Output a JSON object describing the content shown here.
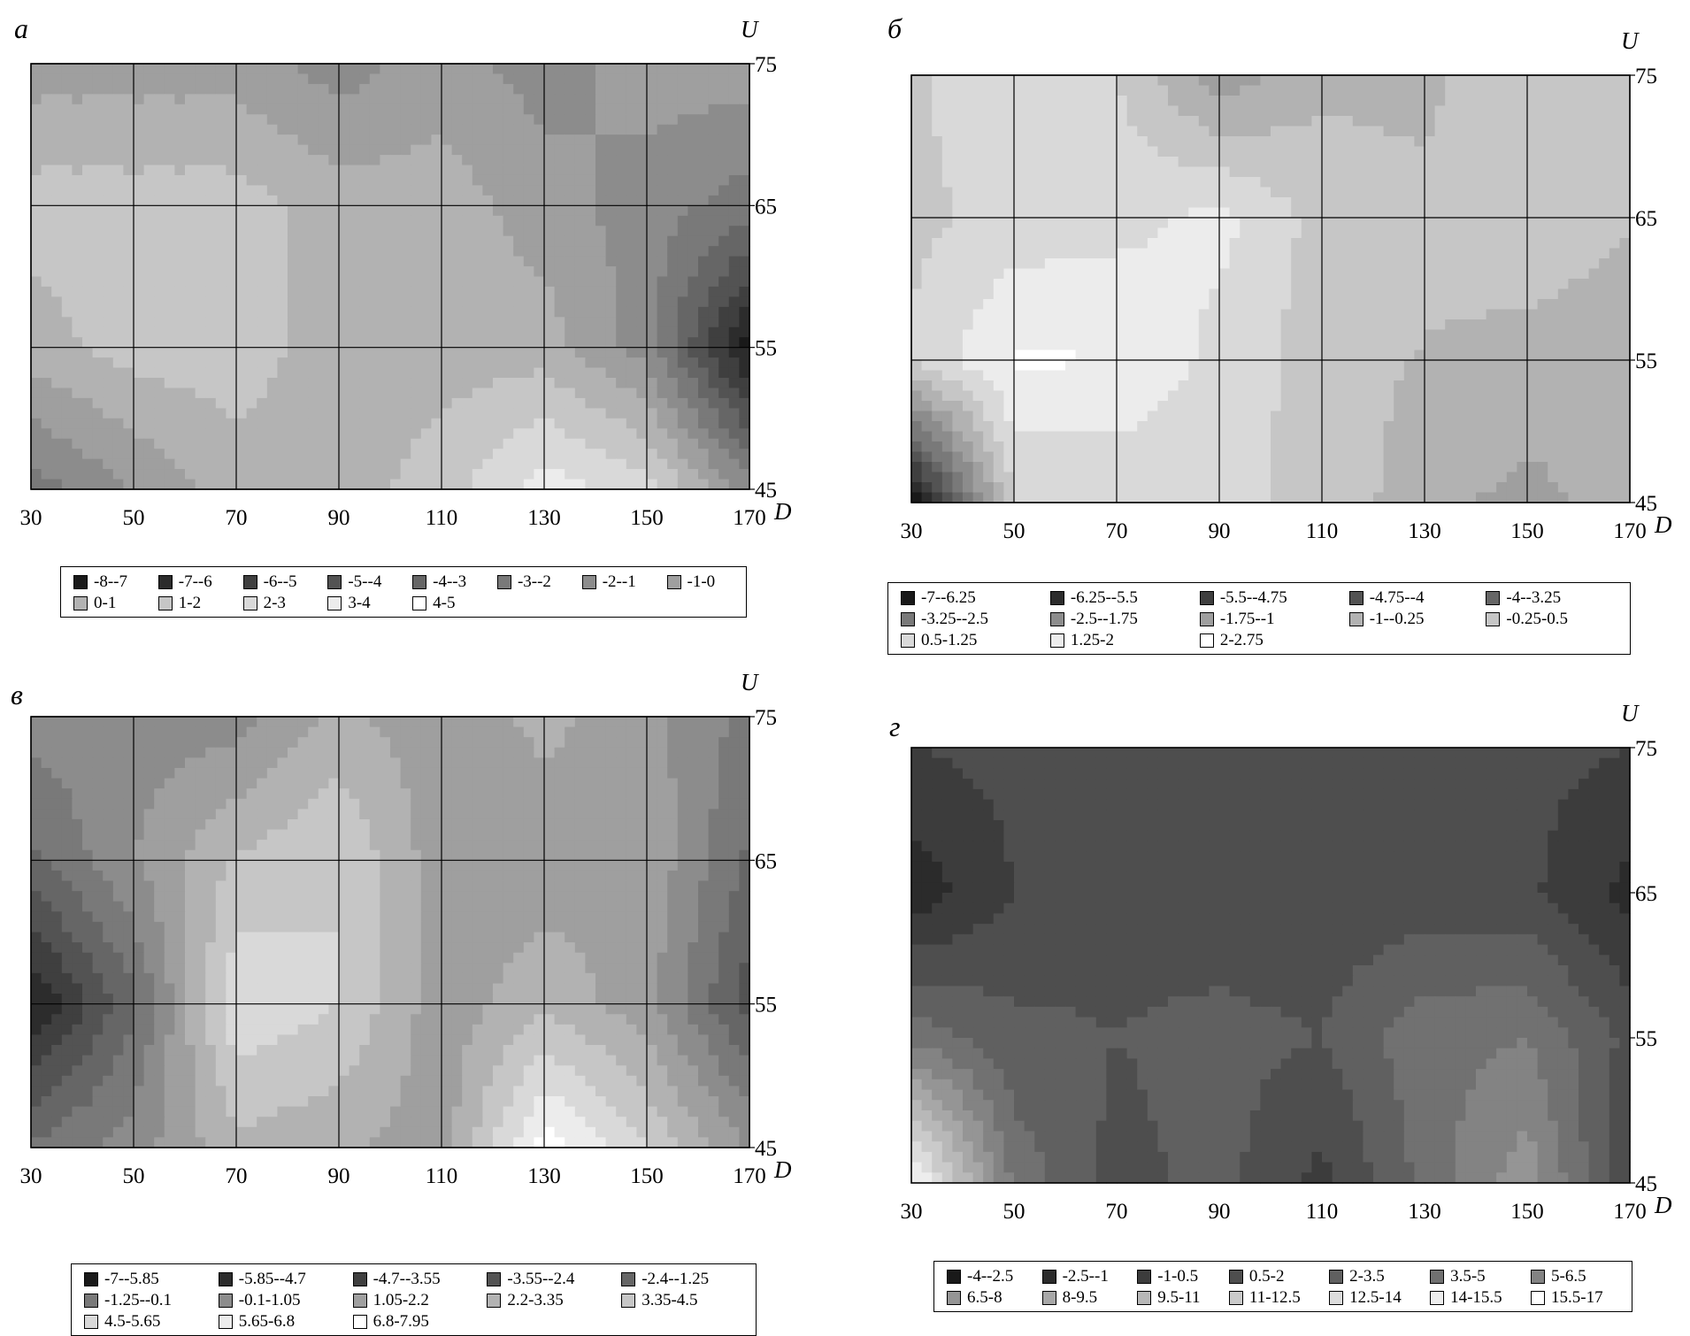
{
  "chart_data": [
    {
      "type": "heatmap",
      "subtype": "filled-contour",
      "panel_label": "а",
      "xlabel": "D",
      "ylabel": "U",
      "x_ticks": [
        "30",
        "50",
        "70",
        "90",
        "110",
        "130",
        "150",
        "170"
      ],
      "y_ticks": [
        "75",
        "65",
        "55",
        "45"
      ],
      "xlim": [
        30,
        170
      ],
      "ylim": [
        45,
        75
      ],
      "grid": true,
      "legend_position": "bottom",
      "legend_columns": 8,
      "x": [
        30,
        50,
        70,
        90,
        110,
        130,
        150,
        170
      ],
      "y": [
        45,
        55,
        65,
        75
      ],
      "z": [
        [
          -2.5,
          -1.0,
          0.5,
          0.5,
          1.5,
          3.5,
          2.5,
          -1.5
        ],
        [
          0.5,
          1.5,
          1.5,
          0.5,
          0.5,
          0.5,
          -1.5,
          -7.5
        ],
        [
          1.5,
          1.5,
          1.5,
          0.5,
          0.5,
          -0.5,
          -1.5,
          -2.5
        ],
        [
          -0.5,
          -0.5,
          -0.5,
          -1.5,
          -0.5,
          -1.5,
          -0.5,
          -0.5
        ]
      ],
      "legend": [
        "-8--7",
        "-7--6",
        "-6--5",
        "-5--4",
        "-4--3",
        "-3--2",
        "-2--1",
        "-1-0",
        "0-1",
        "1-2",
        "2-3",
        "3-4",
        "4-5"
      ]
    },
    {
      "type": "heatmap",
      "subtype": "filled-contour",
      "panel_label": "б",
      "xlabel": "D",
      "ylabel": "U",
      "x_ticks": [
        "30",
        "50",
        "70",
        "90",
        "110",
        "130",
        "150",
        "170"
      ],
      "y_ticks": [
        "75",
        "65",
        "55",
        "45"
      ],
      "xlim": [
        30,
        170
      ],
      "ylim": [
        45,
        75
      ],
      "grid": true,
      "legend_position": "bottom",
      "legend_columns": 5,
      "x": [
        30,
        50,
        70,
        90,
        110,
        130,
        150,
        170
      ],
      "y": [
        45,
        55,
        65,
        75
      ],
      "z": [
        [
          -7.0,
          0.5,
          0.6,
          0.6,
          0.4,
          -0.8,
          -1.2,
          -0.7
        ],
        [
          0.6,
          2.1,
          2.0,
          1.0,
          0.1,
          -0.3,
          -0.6,
          -0.8
        ],
        [
          0.3,
          0.8,
          1.0,
          1.5,
          0.2,
          0.0,
          0.4,
          -0.2
        ],
        [
          0.4,
          1.0,
          0.5,
          -1.5,
          -0.4,
          -0.5,
          0.5,
          -0.1
        ]
      ],
      "legend": [
        "-7--6.25",
        "-6.25--5.5",
        "-5.5--4.75",
        "-4.75--4",
        "-4--3.25",
        "-3.25--2.5",
        "-2.5--1.75",
        "-1.75--1",
        "-1--0.25",
        "-0.25-0.5",
        "0.5-1.25",
        "1.25-2",
        "2-2.75"
      ]
    },
    {
      "type": "heatmap",
      "subtype": "filled-contour",
      "panel_label": "в",
      "xlabel": "D",
      "ylabel": "U",
      "x_ticks": [
        "30",
        "50",
        "70",
        "90",
        "110",
        "130",
        "150",
        "170"
      ],
      "y_ticks": [
        "75",
        "65",
        "55",
        "45"
      ],
      "xlim": [
        30,
        170
      ],
      "ylim": [
        45,
        75
      ],
      "grid": true,
      "legend_position": "bottom",
      "legend_columns": 5,
      "x": [
        30,
        50,
        70,
        90,
        110,
        130,
        150,
        170
      ],
      "y": [
        45,
        55,
        65,
        75
      ],
      "z": [
        [
          -1.0,
          0.5,
          3.0,
          2.5,
          1.5,
          7.5,
          4.5,
          1.0
        ],
        [
          -6.0,
          -1.5,
          5.5,
          4.5,
          1.5,
          3.0,
          1.5,
          -3.0
        ],
        [
          -1.5,
          1.0,
          3.5,
          4.5,
          1.5,
          1.5,
          2.0,
          -1.5
        ],
        [
          0.5,
          0.5,
          0.5,
          2.5,
          1.5,
          2.5,
          1.5,
          -0.5
        ]
      ],
      "legend": [
        "-7--5.85",
        "-5.85--4.7",
        "-4.7--3.55",
        "-3.55--2.4",
        "-2.4--1.25",
        "-1.25--0.1",
        "-0.1-1.05",
        "1.05-2.2",
        "2.2-3.35",
        "3.35-4.5",
        "4.5-5.65",
        "5.65-6.8",
        "6.8-7.95"
      ]
    },
    {
      "type": "heatmap",
      "subtype": "filled-contour",
      "panel_label": "г",
      "xlabel": "D",
      "ylabel": "U",
      "x_ticks": [
        "30",
        "50",
        "70",
        "90",
        "110",
        "130",
        "150",
        "170"
      ],
      "y_ticks": [
        "75",
        "65",
        "55",
        "45"
      ],
      "xlim": [
        30,
        170
      ],
      "ylim": [
        45,
        75
      ],
      "grid": false,
      "legend_position": "bottom",
      "legend_columns": 7,
      "x": [
        30,
        50,
        70,
        90,
        110,
        130,
        150,
        170
      ],
      "y": [
        45,
        55,
        65,
        75
      ],
      "z": [
        [
          16.5,
          4.5,
          1.5,
          2.5,
          0.0,
          4.0,
          7.5,
          0.5
        ],
        [
          4.5,
          2.5,
          2.0,
          2.5,
          2.0,
          4.5,
          5.0,
          1.5
        ],
        [
          -2.0,
          0.5,
          1.5,
          1.0,
          1.0,
          1.0,
          0.8,
          -1.5
        ],
        [
          0.5,
          1.0,
          1.5,
          1.5,
          1.0,
          1.5,
          1.0,
          0.5
        ]
      ],
      "legend": [
        "-4--2.5",
        "-2.5--1",
        "-1-0.5",
        "0.5-2",
        "2-3.5",
        "3.5-5",
        "5-6.5",
        "6.5-8",
        "8-9.5",
        "9.5-11",
        "11-12.5",
        "12.5-14",
        "14-15.5",
        "15.5-17"
      ]
    }
  ]
}
